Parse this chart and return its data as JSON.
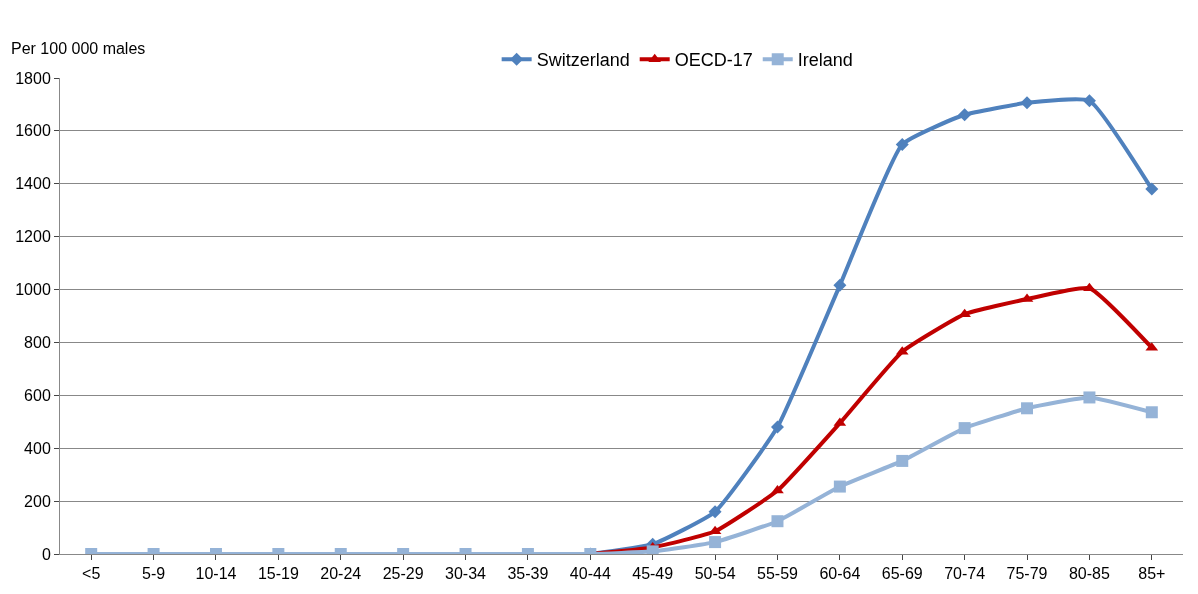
{
  "chart_data": {
    "type": "line",
    "ylabel": "Per 100 000 males",
    "categories": [
      "<5",
      "5-9",
      "10-14",
      "15-19",
      "20-24",
      "25-29",
      "30-34",
      "35-39",
      "40-44",
      "45-49",
      "50-54",
      "55-59",
      "60-64",
      "65-69",
      "70-74",
      "75-79",
      "80-85",
      "85+"
    ],
    "series": [
      {
        "name": "Switzerland",
        "color": "#4f81bd",
        "marker": "diamond",
        "values": [
          null,
          null,
          null,
          null,
          null,
          null,
          null,
          null,
          0,
          37,
          160,
          480,
          1016,
          1549,
          1661,
          1706,
          1714,
          1380
        ]
      },
      {
        "name": "OECD-17",
        "color": "#c00000",
        "marker": "triangle",
        "values": [
          null,
          null,
          null,
          null,
          null,
          null,
          null,
          null,
          0,
          25,
          86,
          240,
          495,
          765,
          907,
          964,
          1005,
          780
        ]
      },
      {
        "name": "Ireland",
        "color": "#95b3d7",
        "marker": "square",
        "values": [
          0,
          0,
          0,
          0,
          0,
          0,
          0,
          0,
          0,
          10,
          45,
          124,
          255,
          352,
          476,
          551,
          592,
          536
        ]
      }
    ],
    "ylim": [
      0,
      1800
    ],
    "yticks": [
      0,
      200,
      400,
      600,
      800,
      1000,
      1200,
      1400,
      1600,
      1800
    ],
    "grid": "y",
    "legend": "top"
  }
}
